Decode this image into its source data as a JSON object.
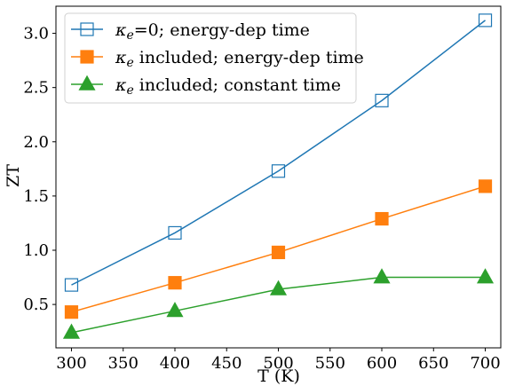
{
  "chart_data": {
    "type": "line",
    "title": "",
    "xlabel": "T (K)",
    "ylabel": "ZT",
    "xlim": [
      285,
      715
    ],
    "ylim": [
      0.1,
      3.25
    ],
    "x_ticks": [
      300,
      350,
      400,
      450,
      500,
      550,
      600,
      650,
      700
    ],
    "y_ticks": [
      0.5,
      1.0,
      1.5,
      2.0,
      2.5,
      3.0
    ],
    "x_tick_labels": [
      "300",
      "350",
      "400",
      "450",
      "500",
      "550",
      "600",
      "650",
      "700"
    ],
    "y_tick_labels": [
      "0.5",
      "1.0",
      "1.5",
      "2.0",
      "2.5",
      "3.0"
    ],
    "grid": false,
    "legend_position": "top-left",
    "series": [
      {
        "name_kappa": "κ",
        "name_sub": "e",
        "name_rest": "=0; energy-dep time",
        "color": "#1f77b4",
        "marker": "square-open",
        "x": [
          300,
          400,
          500,
          600,
          700
        ],
        "values": [
          0.68,
          1.16,
          1.73,
          2.38,
          3.12
        ]
      },
      {
        "name_kappa": "κ",
        "name_sub": "e",
        "name_rest": " included; energy-dep time",
        "color": "#ff7f0e",
        "marker": "square-filled",
        "x": [
          300,
          400,
          500,
          600,
          700
        ],
        "values": [
          0.43,
          0.7,
          0.98,
          1.29,
          1.59
        ]
      },
      {
        "name_kappa": "κ",
        "name_sub": "e",
        "name_rest": " included; constant time",
        "color": "#2ca02c",
        "marker": "triangle-filled",
        "x": [
          300,
          400,
          500,
          600,
          700
        ],
        "values": [
          0.24,
          0.44,
          0.64,
          0.75,
          0.75
        ]
      }
    ]
  }
}
